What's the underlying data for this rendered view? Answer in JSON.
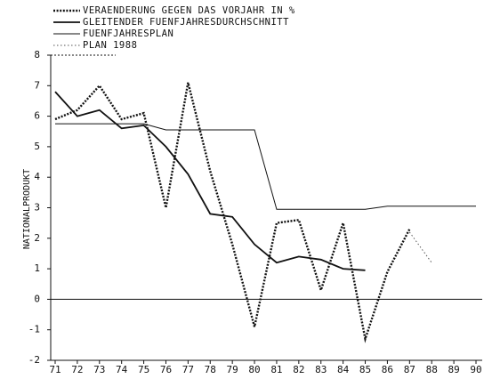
{
  "chart_data": {
    "type": "line",
    "y_label": "NATIONALPRODUKT",
    "categories": [
      "71",
      "72",
      "73",
      "74",
      "75",
      "76",
      "77",
      "78",
      "79",
      "80",
      "81",
      "82",
      "83",
      "84",
      "85",
      "86",
      "87",
      "88",
      "89",
      "90"
    ],
    "series": [
      {
        "name": "VERAENDERUNG GEGEN DAS VORJAHR IN %",
        "color": "#111111",
        "values": [
          5.9,
          6.2,
          7.0,
          5.9,
          6.1,
          3.0,
          7.1,
          4.2,
          1.8,
          -0.9,
          2.5,
          2.6,
          0.3,
          2.5,
          -1.3,
          0.9,
          2.3,
          null,
          null,
          null
        ]
      },
      {
        "name": "GLEITENDER FUENFJAHRESDURCHSCHNITT",
        "color": "#111111",
        "values": [
          6.8,
          6.0,
          6.2,
          5.6,
          5.7,
          5.0,
          4.1,
          2.8,
          2.7,
          1.8,
          1.2,
          1.4,
          1.3,
          1.0,
          0.95,
          null,
          null,
          null,
          null,
          null
        ]
      },
      {
        "name": "FUENFJAHRESPLAN",
        "color": "#111111",
        "values": [
          5.75,
          5.75,
          5.75,
          5.75,
          5.75,
          5.55,
          5.55,
          5.55,
          5.55,
          5.55,
          2.95,
          2.95,
          2.95,
          2.95,
          2.95,
          3.05,
          3.05,
          3.05,
          3.05,
          3.05
        ]
      },
      {
        "name": "PLAN 1988",
        "color": "#555555",
        "values": [
          null,
          null,
          null,
          null,
          null,
          null,
          null,
          null,
          null,
          null,
          null,
          null,
          null,
          null,
          null,
          null,
          2.2,
          1.2,
          null,
          null
        ]
      }
    ],
    "ylim": [
      -2,
      8
    ],
    "yticks": [
      -2,
      -1,
      0,
      1,
      2,
      3,
      4,
      5,
      6,
      7,
      8
    ]
  }
}
